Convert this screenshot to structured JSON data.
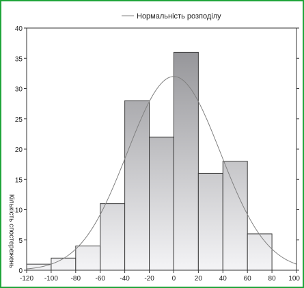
{
  "chart_data": {
    "type": "bar",
    "bins": [
      {
        "from": -120,
        "to": -100,
        "value": 1
      },
      {
        "from": -100,
        "to": -80,
        "value": 2
      },
      {
        "from": -80,
        "to": -60,
        "value": 4
      },
      {
        "from": -60,
        "to": -40,
        "value": 11
      },
      {
        "from": -40,
        "to": -20,
        "value": 28
      },
      {
        "from": -20,
        "to": 0,
        "value": 22
      },
      {
        "from": 0,
        "to": 20,
        "value": 36
      },
      {
        "from": 20,
        "to": 40,
        "value": 16
      },
      {
        "from": 40,
        "to": 60,
        "value": 18
      },
      {
        "from": 60,
        "to": 80,
        "value": 6
      }
    ],
    "normal_curve": {
      "name": "Нормальність розподілу",
      "peak": 32,
      "mean": 0,
      "sd": 38
    },
    "xlim": [
      -120,
      100
    ],
    "ylim": [
      0,
      40
    ],
    "xticks": [
      -120,
      -100,
      -80,
      -60,
      -40,
      -20,
      0,
      20,
      40,
      60,
      80,
      100
    ],
    "yticks": [
      0,
      5,
      10,
      15,
      20,
      25,
      30,
      35,
      40
    ],
    "xlabel": "",
    "ylabel": "Кількість спостережень",
    "title": "",
    "legend_position": "top-center",
    "grid": false,
    "colors": {
      "bar_top": "#8c8c90",
      "bar_bottom": "#f4f4f6",
      "bar_edge": "#3a3a3a",
      "curve": "#808080",
      "frame": "#1fa53a"
    }
  }
}
